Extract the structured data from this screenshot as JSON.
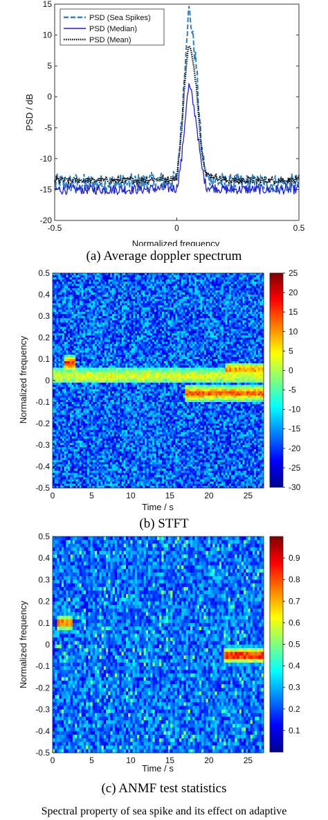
{
  "chart_data": [
    {
      "type": "line",
      "caption": "(a)  Average doppler spectrum",
      "xlabel": "Normalized frequency",
      "ylabel": "PSD / dB",
      "xlim": [
        -0.5,
        0.5
      ],
      "ylim": [
        -20,
        15
      ],
      "xticks": [
        "-0.5",
        "0",
        "0.5"
      ],
      "yticks": [
        "15",
        "10",
        "5",
        "0",
        "-5",
        "-10",
        "-15",
        "-20"
      ],
      "legend_position": "top-left",
      "grid": false,
      "series": [
        {
          "name": "PSD (Sea Spikes)",
          "color": "#2e7fc0",
          "style": "dashed",
          "x": [
            -0.5,
            -0.2,
            0.0,
            0.02,
            0.04,
            0.05,
            0.06,
            0.08,
            0.1,
            0.12,
            0.2,
            0.5
          ],
          "values": [
            -14.0,
            -14.0,
            -13.5,
            -4.0,
            10.0,
            14.0,
            11.5,
            5.0,
            -8.0,
            -13.0,
            -14.0,
            -14.0
          ]
        },
        {
          "name": "PSD (Median)",
          "color": "#1f1fcc",
          "style": "solid",
          "x": [
            -0.5,
            -0.2,
            0.0,
            0.02,
            0.04,
            0.05,
            0.06,
            0.08,
            0.1,
            0.12,
            0.2,
            0.5
          ],
          "values": [
            -15.0,
            -15.0,
            -14.8,
            -10.0,
            -1.0,
            1.8,
            0.5,
            -4.0,
            -11.0,
            -14.5,
            -15.0,
            -15.0
          ]
        },
        {
          "name": "PSD (Mean)",
          "color": "#111111",
          "style": "dotted",
          "x": [
            -0.5,
            -0.2,
            0.0,
            0.02,
            0.04,
            0.05,
            0.06,
            0.08,
            0.1,
            0.12,
            0.2,
            0.5
          ],
          "values": [
            -13.5,
            -13.5,
            -13.2,
            -5.0,
            6.0,
            8.5,
            7.0,
            2.0,
            -8.0,
            -12.5,
            -13.5,
            -13.5
          ]
        }
      ]
    },
    {
      "type": "heatmap",
      "caption": "(b)  STFT",
      "xlabel": "Time / s",
      "ylabel": "Normalized frequency",
      "xlim": [
        0,
        27
      ],
      "ylim": [
        -0.5,
        0.5
      ],
      "xticks": [
        "0",
        "5",
        "10",
        "15",
        "20",
        "25"
      ],
      "yticks": [
        "0.5",
        "0.4",
        "0.3",
        "0.2",
        "0.1",
        "0",
        "-0.1",
        "-0.2",
        "-0.3",
        "-0.4",
        "-0.5"
      ],
      "colorbar_range": [
        -30,
        25
      ],
      "colorbar_ticks": [
        "25",
        "20",
        "15",
        "10",
        "5",
        "0",
        "-5",
        "-10",
        "-15",
        "-20",
        "-25",
        "-30"
      ],
      "colormap": "jet",
      "features": [
        {
          "t": [
            0,
            27
          ],
          "f": 0.02,
          "level": 4,
          "description_level_db": 4
        },
        {
          "t": [
            1.5,
            3
          ],
          "f": 0.08,
          "level": 20
        },
        {
          "t": [
            22,
            27
          ],
          "f": 0.05,
          "level": 12
        },
        {
          "t": [
            17,
            27
          ],
          "f": -0.06,
          "level": 16
        }
      ]
    },
    {
      "type": "heatmap",
      "caption": "(c)  ANMF test statistics",
      "xlabel": "Time / s",
      "ylabel": "Normalized frequency",
      "xlim": [
        0,
        27
      ],
      "ylim": [
        -0.5,
        0.5
      ],
      "xticks": [
        "0",
        "5",
        "10",
        "15",
        "20",
        "25"
      ],
      "yticks": [
        "0.5",
        "0.4",
        "0.3",
        "0.2",
        "0.1",
        "0",
        "-0.1",
        "-0.2",
        "-0.3",
        "-0.4",
        "-0.5"
      ],
      "colorbar_range": [
        0,
        1
      ],
      "colorbar_ticks": [
        "0.9",
        "0.8",
        "0.7",
        "0.6",
        "0.5",
        "0.4",
        "0.3",
        "0.2",
        "0.1"
      ],
      "colormap": "jet",
      "features": [
        {
          "t": [
            0.5,
            2.5
          ],
          "f": 0.1,
          "level": 0.85
        },
        {
          "t": [
            22,
            27
          ],
          "f": -0.05,
          "level": 0.95
        }
      ]
    }
  ],
  "figure_caption": "Spectral property of sea spike and its effect on adaptive"
}
